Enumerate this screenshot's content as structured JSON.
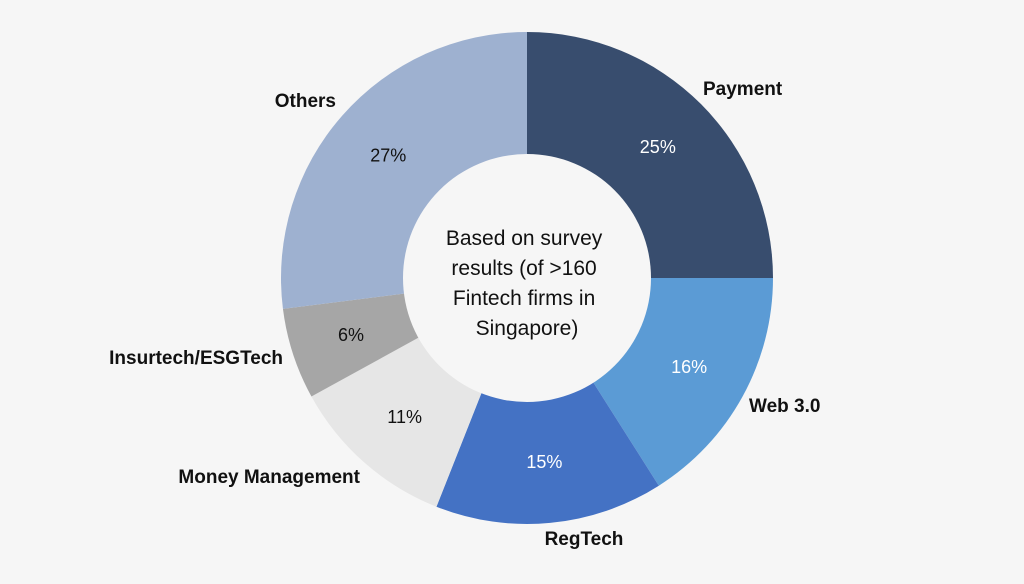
{
  "chart_data": {
    "type": "pie",
    "variant": "donut",
    "center_note": [
      "Based on survey",
      "results (of >160",
      "Fintech firms in",
      "Singapore)"
    ],
    "slices": [
      {
        "label": "Payment",
        "value": 25,
        "value_label": "25%",
        "color": "#384d6e",
        "value_label_color": "#ffffff"
      },
      {
        "label": "Web 3.0",
        "value": 16,
        "value_label": "16%",
        "color": "#5b9bd5",
        "value_label_color": "#ffffff"
      },
      {
        "label": "RegTech",
        "value": 15,
        "value_label": "15%",
        "color": "#4472c4",
        "value_label_color": "#ffffff"
      },
      {
        "label": "Money Management",
        "value": 11,
        "value_label": "11%",
        "color": "#e6e6e6",
        "value_label_color": "#111111"
      },
      {
        "label": "Insurtech/ESGTech",
        "value": 6,
        "value_label": "6%",
        "color": "#a6a6a6",
        "value_label_color": "#111111"
      },
      {
        "label": "Others",
        "value": 27,
        "value_label": "27%",
        "color": "#9eb1d0",
        "value_label_color": "#111111"
      }
    ]
  }
}
